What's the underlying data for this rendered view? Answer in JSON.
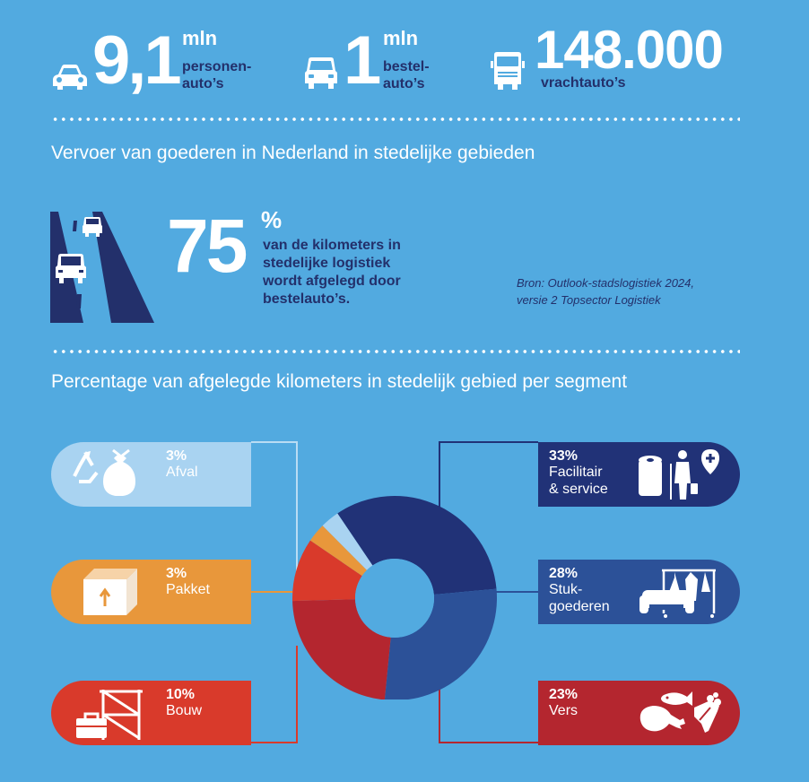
{
  "stats": [
    {
      "number": "9,1",
      "unit": "mln",
      "label_line1": "personen-",
      "label_line2": "auto’s",
      "icon": "car-icon"
    },
    {
      "number": "1",
      "unit": "mln",
      "label_line1": "bestel-",
      "label_line2": "auto’s",
      "icon": "van-icon"
    },
    {
      "number": "148.000",
      "unit": "",
      "label_line1": "vrachtauto’s",
      "label_line2": "",
      "icon": "truck-icon"
    }
  ],
  "section1": {
    "heading": "Vervoer van goederen in Nederland in stedelijke gebieden",
    "big_number": "75",
    "percent_sign": "%",
    "description_lines": [
      "van de kilometers in",
      "stedelijke logistiek",
      "wordt afgelegd door",
      "bestelauto’s."
    ],
    "source_lines": [
      "Bron: Outlook-stadslogistiek 2024,",
      "versie 2 Topsector Logistiek"
    ]
  },
  "section2": {
    "heading": "Percentage van afgelegde kilometers in stedelijk gebied per segment"
  },
  "segments": [
    {
      "pct": "3%",
      "label_lines": [
        "Afval"
      ],
      "icon": "waste-bag-icon",
      "color": "#a9d3f1",
      "text_color": "#ffffff"
    },
    {
      "pct": "3%",
      "label_lines": [
        "Pakket"
      ],
      "icon": "package-icon",
      "color": "#e8973b",
      "text_color": "#ffffff"
    },
    {
      "pct": "10%",
      "label_lines": [
        "Bouw"
      ],
      "icon": "scaffold-toolbox-icon",
      "color": "#d93a2b",
      "text_color": "#ffffff"
    },
    {
      "pct": "33%",
      "label_lines": [
        "Facilitair",
        "& service"
      ],
      "icon": "cleaning-service-icon",
      "color": "#213277",
      "text_color": "#ffffff"
    },
    {
      "pct": "28%",
      "label_lines": [
        "Stuk-",
        "goederen"
      ],
      "icon": "furniture-clothing-icon",
      "color": "#2c5198",
      "text_color": "#ffffff"
    },
    {
      "pct": "23%",
      "label_lines": [
        "Vers"
      ],
      "icon": "fresh-food-icon",
      "color": "#b4262f",
      "text_color": "#ffffff"
    }
  ],
  "chart_data": {
    "type": "pie",
    "donut": true,
    "title": "Percentage van afgelegde kilometers in stedelijk gebied per segment",
    "categories": [
      "Facilitair & service",
      "Stukgoederen",
      "Vers",
      "Bouw",
      "Pakket",
      "Afval"
    ],
    "values": [
      33,
      28,
      23,
      10,
      3,
      3
    ],
    "colors": [
      "#213277",
      "#2c5198",
      "#b4262f",
      "#d93a2b",
      "#e8973b",
      "#a9d3f1"
    ]
  }
}
